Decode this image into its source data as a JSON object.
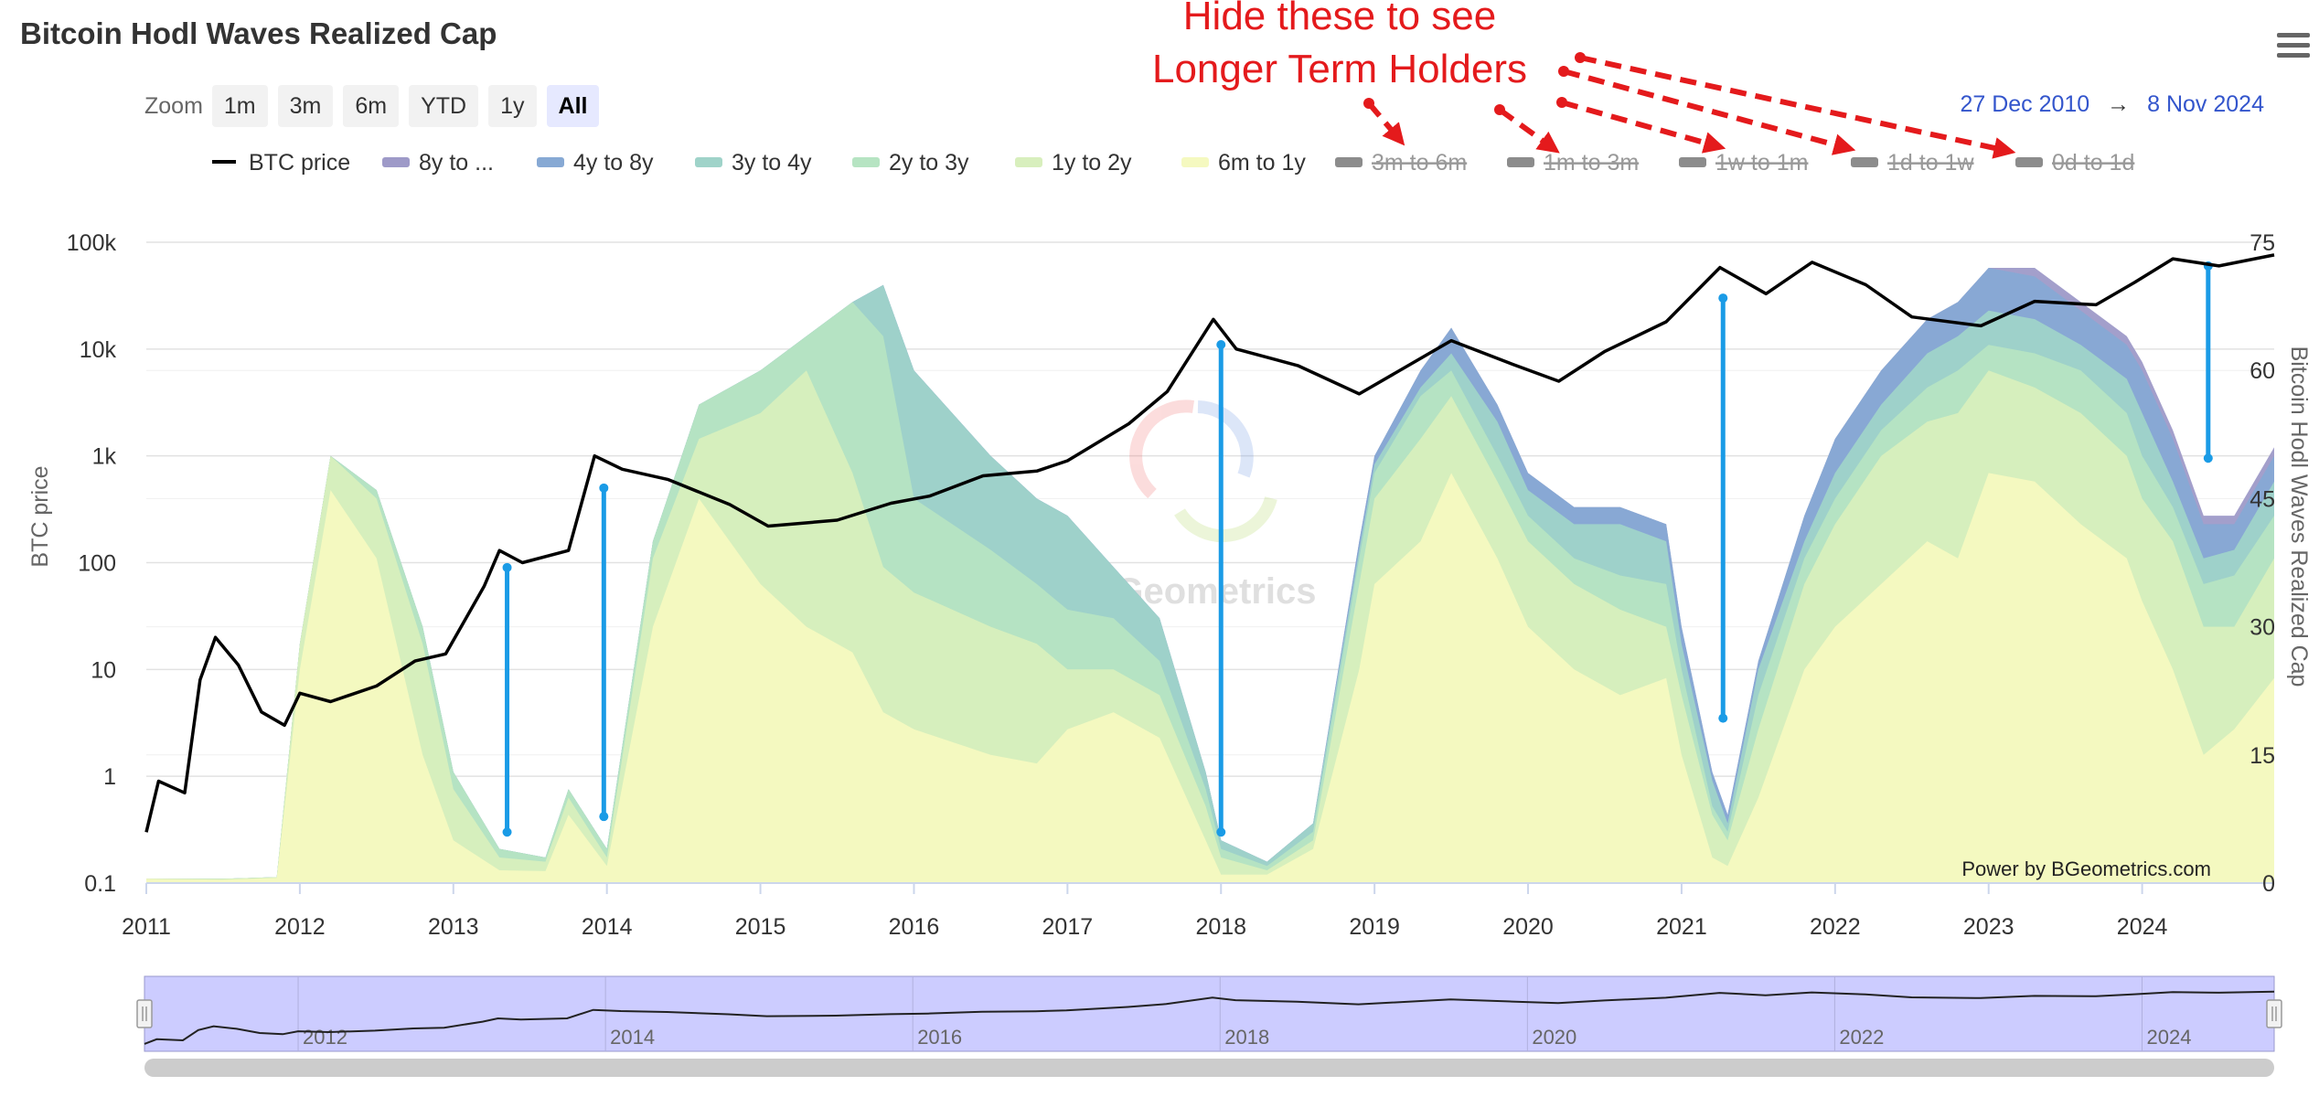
{
  "title": "Bitcoin Hodl Waves Realized Cap",
  "menu_icon": "hamburger-menu-icon",
  "zoom": {
    "label": "Zoom",
    "buttons": [
      "1m",
      "3m",
      "6m",
      "YTD",
      "1y",
      "All"
    ],
    "active": "All"
  },
  "range": {
    "from": "27 Dec 2010",
    "arrow": "→",
    "to": "8 Nov 2024"
  },
  "annotation": {
    "line1": "Hide these to see",
    "line2": "Longer Term Holders",
    "color": "#e41a1c"
  },
  "credit": "Power by BGeometrics.com",
  "watermark": "BGeometrics",
  "navigator": {
    "labels": [
      "2012",
      "2014",
      "2016",
      "2018",
      "2020",
      "2022",
      "2024"
    ],
    "fill_color": "#ccccff"
  },
  "chart_data": {
    "type": "area",
    "title": "Bitcoin Hodl Waves Realized Cap",
    "x_labels": [
      "2011",
      "2012",
      "2013",
      "2014",
      "2015",
      "2016",
      "2017",
      "2018",
      "2019",
      "2020",
      "2021",
      "2022",
      "2023",
      "2024"
    ],
    "xlim": [
      "2011-01-01",
      "2024-11-08"
    ],
    "left_axis": {
      "label": "BTC price",
      "scale": "log",
      "ticks": [
        "0.1",
        "1",
        "10",
        "100",
        "1k",
        "10k",
        "100k"
      ],
      "range": [
        0.1,
        100000
      ]
    },
    "right_axis": {
      "label": "Bitcoin Hodl Waves Realized Cap",
      "ticks": [
        "0",
        "15",
        "30",
        "45",
        "60",
        "75"
      ],
      "range": [
        0,
        75
      ]
    },
    "legend": {
      "placement": "top",
      "items": [
        {
          "name": "BTC price",
          "color": "#000000",
          "visible": true,
          "kind": "line"
        },
        {
          "name": "8y to ...",
          "color": "#9e9ac8",
          "visible": true,
          "kind": "area"
        },
        {
          "name": "4y to 8y",
          "color": "#87a9d4",
          "visible": true,
          "kind": "area"
        },
        {
          "name": "3y to 4y",
          "color": "#9fd3c9",
          "visible": true,
          "kind": "area"
        },
        {
          "name": "2y to 3y",
          "color": "#b6e4c2",
          "visible": true,
          "kind": "area"
        },
        {
          "name": "1y to 2y",
          "color": "#d8efbd",
          "visible": true,
          "kind": "area"
        },
        {
          "name": "6m to 1y",
          "color": "#f5f9c0",
          "visible": true,
          "kind": "area"
        },
        {
          "name": "3m to 6m",
          "color": "#8c8c8c",
          "visible": false,
          "kind": "area"
        },
        {
          "name": "1m to 3m",
          "color": "#8c8c8c",
          "visible": false,
          "kind": "area"
        },
        {
          "name": "1w to 1m",
          "color": "#8c8c8c",
          "visible": false,
          "kind": "area"
        },
        {
          "name": "1d to 1w",
          "color": "#8c8c8c",
          "visible": false,
          "kind": "area"
        },
        {
          "name": "0d to 1d",
          "color": "#8c8c8c",
          "visible": false,
          "kind": "area"
        }
      ]
    },
    "price_series": {
      "name": "BTC price",
      "points": [
        [
          2011.0,
          0.3
        ],
        [
          2011.08,
          0.9
        ],
        [
          2011.25,
          0.7
        ],
        [
          2011.35,
          8
        ],
        [
          2011.45,
          20
        ],
        [
          2011.6,
          11
        ],
        [
          2011.75,
          4
        ],
        [
          2011.9,
          3
        ],
        [
          2012.0,
          6
        ],
        [
          2012.2,
          5
        ],
        [
          2012.5,
          7
        ],
        [
          2012.75,
          12
        ],
        [
          2012.95,
          14
        ],
        [
          2013.2,
          60
        ],
        [
          2013.3,
          130
        ],
        [
          2013.45,
          100
        ],
        [
          2013.75,
          130
        ],
        [
          2013.92,
          1000
        ],
        [
          2014.1,
          750
        ],
        [
          2014.4,
          600
        ],
        [
          2014.8,
          350
        ],
        [
          2015.05,
          220
        ],
        [
          2015.5,
          250
        ],
        [
          2015.85,
          360
        ],
        [
          2016.1,
          420
        ],
        [
          2016.45,
          650
        ],
        [
          2016.8,
          720
        ],
        [
          2017.0,
          900
        ],
        [
          2017.4,
          2000
        ],
        [
          2017.65,
          4000
        ],
        [
          2017.95,
          19000
        ],
        [
          2018.1,
          10000
        ],
        [
          2018.5,
          7000
        ],
        [
          2018.9,
          3800
        ],
        [
          2019.5,
          12000
        ],
        [
          2019.9,
          7200
        ],
        [
          2020.2,
          5000
        ],
        [
          2020.5,
          9500
        ],
        [
          2020.9,
          18000
        ],
        [
          2021.25,
          58000
        ],
        [
          2021.55,
          33000
        ],
        [
          2021.85,
          65000
        ],
        [
          2022.2,
          40000
        ],
        [
          2022.5,
          20000
        ],
        [
          2022.95,
          16500
        ],
        [
          2023.3,
          28000
        ],
        [
          2023.7,
          26000
        ],
        [
          2023.95,
          42000
        ],
        [
          2024.2,
          70000
        ],
        [
          2024.5,
          60000
        ],
        [
          2024.86,
          76000
        ]
      ]
    },
    "cumulative_waves": {
      "note": "Stacked cumulative values on right axis (0-75), series order 6m to 1y, 1y to 2y, 2y to 3y, 3y to 4y, 4y to 8y, 8y to ...",
      "dates": [
        2011.0,
        2011.5,
        2011.85,
        2012.0,
        2012.2,
        2012.5,
        2012.8,
        2013.0,
        2013.3,
        2013.6,
        2013.75,
        2014.0,
        2014.3,
        2014.6,
        2015.0,
        2015.3,
        2015.6,
        2015.8,
        2016.0,
        2016.5,
        2016.8,
        2017.0,
        2017.3,
        2017.6,
        2017.9,
        2018.0,
        2018.3,
        2018.6,
        2018.9,
        2019.0,
        2019.3,
        2019.5,
        2019.8,
        2020.0,
        2020.3,
        2020.6,
        2020.9,
        2021.0,
        2021.2,
        2021.3,
        2021.5,
        2021.8,
        2022.0,
        2022.3,
        2022.6,
        2022.8,
        2023.0,
        2023.3,
        2023.6,
        2023.9,
        2024.0,
        2024.2,
        2024.4,
        2024.6,
        2024.86
      ],
      "series": [
        {
          "name": "6m to 1y",
          "values": [
            0.5,
            0.4,
            0.6,
            25,
            46,
            38,
            15,
            5,
            1.5,
            1.4,
            8,
            2,
            30,
            45,
            35,
            30,
            27,
            20,
            18,
            15,
            14,
            18,
            20,
            17,
            5,
            1,
            1,
            4,
            25,
            35,
            40,
            48,
            38,
            30,
            25,
            22,
            24,
            15,
            3,
            2,
            10,
            25,
            30,
            35,
            40,
            38,
            48,
            47,
            42,
            38,
            33,
            25,
            15,
            18,
            24
          ]
        },
        {
          "name": "1y to 2y",
          "values": [
            0.5,
            0.5,
            0.7,
            28,
            50,
            45,
            28,
            11,
            3,
            2.5,
            10,
            3,
            38,
            52,
            55,
            60,
            48,
            37,
            34,
            30,
            28,
            25,
            25,
            22,
            9,
            3,
            1.5,
            5,
            35,
            45,
            52,
            57,
            47,
            40,
            35,
            32,
            30,
            22,
            8,
            5,
            18,
            35,
            42,
            50,
            54,
            55,
            60,
            58,
            55,
            50,
            45,
            40,
            30,
            30,
            38
          ]
        },
        {
          "name": "2y to 3y",
          "values": [
            0.5,
            0.5,
            0.7,
            28,
            50,
            46,
            30,
            13,
            4,
            3,
            11,
            4,
            40,
            56,
            60,
            64,
            68,
            64,
            45,
            39,
            35,
            32,
            31,
            26,
            11,
            4,
            2,
            6,
            38,
            48,
            57,
            60,
            50,
            43,
            38,
            36,
            35,
            25,
            9,
            6,
            22,
            38,
            45,
            53,
            58,
            60,
            63,
            62,
            60,
            55,
            50,
            44,
            35,
            36,
            43
          ]
        },
        {
          "name": "3y to 4y",
          "values": [
            0.5,
            0.5,
            0.7,
            28,
            50,
            46,
            30,
            13,
            4,
            3,
            11,
            4,
            40,
            56,
            60,
            64,
            68,
            70,
            60,
            50,
            45,
            43,
            37,
            31,
            13,
            5,
            2.5,
            7,
            39,
            49,
            58,
            62,
            54,
            46,
            42,
            42,
            40,
            28,
            12,
            7,
            25,
            40,
            48,
            56,
            62,
            64,
            67,
            66,
            63,
            59,
            55,
            47,
            38,
            39,
            47
          ]
        },
        {
          "name": "4y to 8y",
          "values": [
            0.5,
            0.5,
            0.7,
            28,
            50,
            46,
            30,
            13,
            4,
            3,
            11,
            4,
            40,
            56,
            60,
            64,
            68,
            70,
            60,
            50,
            45,
            43,
            37,
            31,
            13,
            5,
            2.5,
            7,
            40,
            50,
            60,
            65,
            56,
            48,
            44,
            44,
            42,
            30,
            13,
            8,
            26,
            43,
            52,
            60,
            66,
            68,
            72,
            71,
            67,
            63,
            60,
            52,
            42,
            42,
            50
          ]
        },
        {
          "name": "8y to ...",
          "values": [
            0.5,
            0.5,
            0.7,
            28,
            50,
            46,
            30,
            13,
            4,
            3,
            11,
            4,
            40,
            56,
            60,
            64,
            68,
            70,
            60,
            50,
            45,
            43,
            37,
            31,
            13,
            5,
            2.5,
            7,
            40,
            50,
            60,
            65,
            56,
            48,
            44,
            44,
            42,
            30,
            13,
            8,
            26,
            43,
            52,
            60,
            66,
            68,
            72,
            72,
            68,
            64,
            61,
            53,
            43,
            43,
            51
          ]
        }
      ]
    },
    "drawdown_lines": [
      {
        "date": 2013.35,
        "price_top": 90,
        "price_bottom": 0.3
      },
      {
        "date": 2013.98,
        "price_top": 500,
        "price_bottom": 0.42
      },
      {
        "date": 2018.0,
        "price_top": 11000,
        "price_bottom": 0.3
      },
      {
        "date": 2021.27,
        "price_top": 30000,
        "price_bottom": 3.5
      },
      {
        "date": 2024.43,
        "price_top": 60000,
        "price_bottom": 950
      }
    ],
    "drawdown_color": "#1a9be6",
    "grid": true
  }
}
